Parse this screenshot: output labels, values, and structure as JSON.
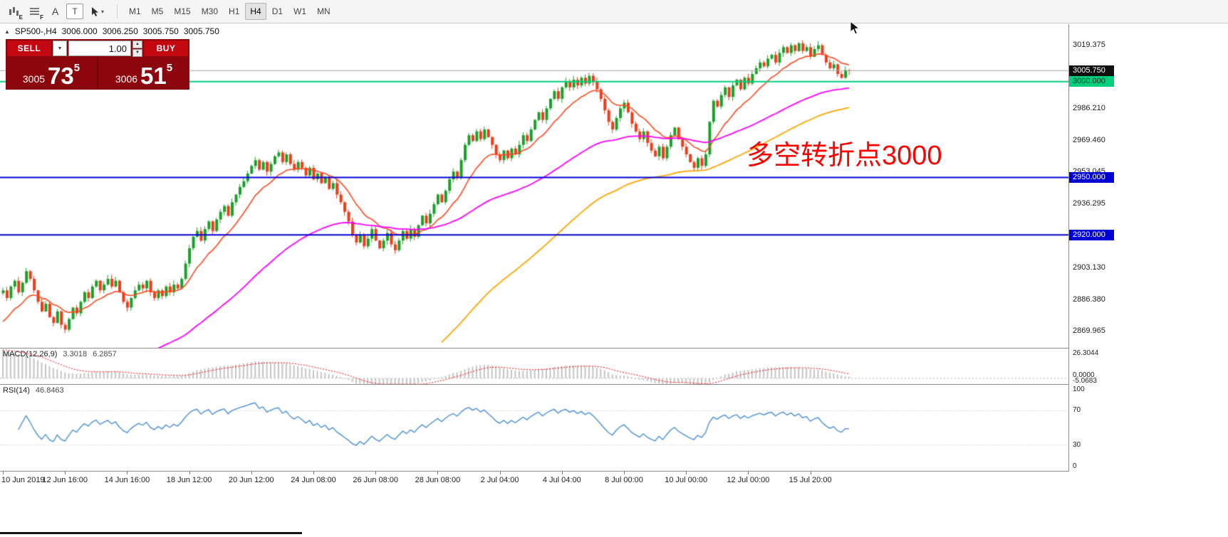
{
  "toolbar": {
    "tools": [
      {
        "name": "chart-expert-icon",
        "sub": "E"
      },
      {
        "name": "chart-grid-icon",
        "sub": "F"
      },
      {
        "name": "label-tool",
        "glyph": "A"
      },
      {
        "name": "textbox-tool",
        "glyph": "T"
      },
      {
        "name": "cursor-tool",
        "dropdown_glyph": "▾"
      }
    ],
    "timeframes": [
      "M1",
      "M5",
      "M15",
      "M30",
      "H1",
      "H4",
      "D1",
      "W1",
      "MN"
    ],
    "active_timeframe": "H4"
  },
  "chart_header": {
    "collapse_arrow": "▲",
    "symbol": "SP500-,H4",
    "open": "3006.000",
    "high": "3006.250",
    "low": "3005.750",
    "close": "3005.750"
  },
  "trade_panel": {
    "sell_label": "SELL",
    "buy_label": "BUY",
    "volume": "1.00",
    "combo_arrow": "▼",
    "spin_up": "▲",
    "spin_down": "▼",
    "sell_price_main": "3005",
    "sell_price_big": "73",
    "sell_price_sup": "5",
    "buy_price_main": "3006",
    "buy_price_big": "51",
    "buy_price_sup": "5",
    "colors": {
      "panel": "#8c060e",
      "button": "#c40812",
      "divider": "#6e040b"
    }
  },
  "annotation": {
    "text": "多空转折点3000",
    "color": "#ff0000"
  },
  "price_axis": {
    "ticks": [
      {
        "label": "3019.375",
        "price": 3019.375
      },
      {
        "label": "2986.210",
        "price": 2986.21
      },
      {
        "label": "2969.460",
        "price": 2969.46
      },
      {
        "label": "2953.045",
        "price": 2953.045
      },
      {
        "label": "2936.295",
        "price": 2936.295
      },
      {
        "label": "2903.130",
        "price": 2903.13
      },
      {
        "label": "2886.380",
        "price": 2886.38
      },
      {
        "label": "2869.965",
        "price": 2869.965
      }
    ],
    "badges": [
      {
        "name": "current-price-badge",
        "label": "3005.750",
        "price": 3005.75,
        "bg": "#101010",
        "fg": "#ffffff"
      },
      {
        "name": "level-3000-badge",
        "label": "3000.000",
        "price": 3000.0,
        "bg": "#00d07d",
        "fg": "#00331c"
      },
      {
        "name": "level-2950-badge",
        "label": "2950.000",
        "price": 2950.0,
        "bg": "#0000d6",
        "fg": "#ffffff"
      },
      {
        "name": "level-2920-badge",
        "label": "2920.000",
        "price": 2920.0,
        "bg": "#0000d6",
        "fg": "#ffffff"
      }
    ]
  },
  "macd_panel": {
    "title": "MACD(12,26,9)",
    "value_main": "3.3018",
    "value_signal": "6.2857",
    "axis_top": "26.3044",
    "axis_zero": "0.0000",
    "axis_bottom": "-5.0683"
  },
  "rsi_panel": {
    "title": "RSI(14)",
    "value": "46.8463",
    "axis": [
      "100",
      "70",
      "30",
      "0"
    ]
  },
  "time_axis": {
    "labels": [
      "10 Jun 2019",
      "12 Jun 16:00",
      "14 Jun 16:00",
      "18 Jun 12:00",
      "20 Jun 12:00",
      "24 Jun 08:00",
      "26 Jun 08:00",
      "28 Jun 08:00",
      "2 Jul 04:00",
      "4 Jul 04:00",
      "8 Jul 00:00",
      "10 Jul 00:00",
      "12 Jul 00:00",
      "15 Jul 20:00"
    ],
    "bar_indices": [
      0,
      16,
      32,
      48,
      64,
      80,
      96,
      112,
      128,
      144,
      160,
      176,
      192,
      208
    ]
  },
  "chart_data": {
    "type": "candlestick",
    "symbol": "SP500-",
    "timeframe": "H4",
    "ylim": [
      2861,
      3030
    ],
    "closes": [
      2891,
      2887,
      2893,
      2896,
      2890,
      2895,
      2901,
      2897,
      2891,
      2885,
      2880,
      2884,
      2877,
      2874,
      2880,
      2873,
      2870.5,
      2876,
      2882,
      2879,
      2885,
      2890,
      2887,
      2893,
      2896,
      2891,
      2894,
      2897,
      2893,
      2896,
      2890,
      2885,
      2882,
      2887,
      2891,
      2894,
      2892,
      2896,
      2890,
      2887,
      2891,
      2888,
      2893,
      2890,
      2894,
      2892,
      2897,
      2905,
      2913,
      2919,
      2922,
      2917,
      2923,
      2927,
      2922,
      2928,
      2932,
      2935,
      2930,
      2937,
      2941,
      2945,
      2948,
      2952,
      2956,
      2959,
      2954,
      2958,
      2953,
      2957,
      2961,
      2963,
      2958,
      2962,
      2957,
      2954,
      2958,
      2955,
      2951,
      2955,
      2949,
      2952,
      2947,
      2950,
      2944,
      2947,
      2941,
      2937,
      2932,
      2927,
      2920,
      2916,
      2920,
      2914,
      2918,
      2923,
      2917,
      2913,
      2917,
      2921,
      2915,
      2912,
      2917,
      2922,
      2918,
      2923,
      2919,
      2925,
      2930,
      2926,
      2931,
      2936,
      2941,
      2937,
      2943,
      2949,
      2953,
      2950,
      2959,
      2967,
      2972,
      2969,
      2974,
      2970,
      2975,
      2971,
      2967,
      2962,
      2959,
      2964,
      2960,
      2965,
      2962,
      2967,
      2972,
      2969,
      2975,
      2980,
      2984,
      2980,
      2986,
      2991,
      2995,
      2991,
      2997,
      3000,
      2997,
      3001,
      2998,
      3002,
      2999,
      3003,
      3000,
      2996,
      2991,
      2985,
      2979,
      2975,
      2981,
      2986,
      2989,
      2984,
      2978,
      2974,
      2970,
      2974,
      2968,
      2964,
      2961,
      2966,
      2960,
      2966,
      2972,
      2976,
      2970,
      2966,
      2962,
      2958,
      2955,
      2960,
      2956,
      2962,
      2979,
      2990,
      2987,
      2993,
      2997,
      2992,
      2998,
      3001,
      2996,
      3002,
      2999,
      3004,
      3007,
      3010,
      3008,
      3012,
      3014,
      3010,
      3015,
      3018,
      3015,
      3019,
      3016,
      3020,
      3016,
      3018,
      3013,
      3017,
      3019,
      3014,
      3010,
      3007,
      3009,
      3004,
      3002,
      3006,
      3005.75
    ],
    "candle_up_color": "#18a228",
    "candle_down_color": "#f23b19",
    "overlays": {
      "ma_fast": {
        "period": 13,
        "color": "#ff4a1f",
        "seed": 2872,
        "from": 0
      },
      "ma_mid": {
        "period": 60,
        "color": "#ff00ff",
        "seed": 2848,
        "from": 30
      },
      "ma_slow": {
        "period": 80,
        "color": "#ffa500",
        "seed": 2862,
        "from": 113
      }
    },
    "hlines": [
      {
        "price": 3000.0,
        "color": "#00d07d",
        "width": 2
      },
      {
        "price": 2950.0,
        "color": "#0000d6",
        "width": 2
      },
      {
        "price": 2920.0,
        "color": "#0000d6",
        "width": 2
      },
      {
        "price": 3005.75,
        "color": "#a8a8a8",
        "width": 1
      }
    ],
    "macd": {
      "fast": 12,
      "slow": 26,
      "signal": 9,
      "scale_max": 26.3044,
      "scale_min": -5.0683,
      "hist_color": "#c4c4c4",
      "signal_color": "#ff0000"
    },
    "rsi": {
      "period": 14,
      "color": "#4a90d9",
      "levels": [
        70,
        30
      ],
      "scale": [
        0,
        100
      ]
    }
  }
}
